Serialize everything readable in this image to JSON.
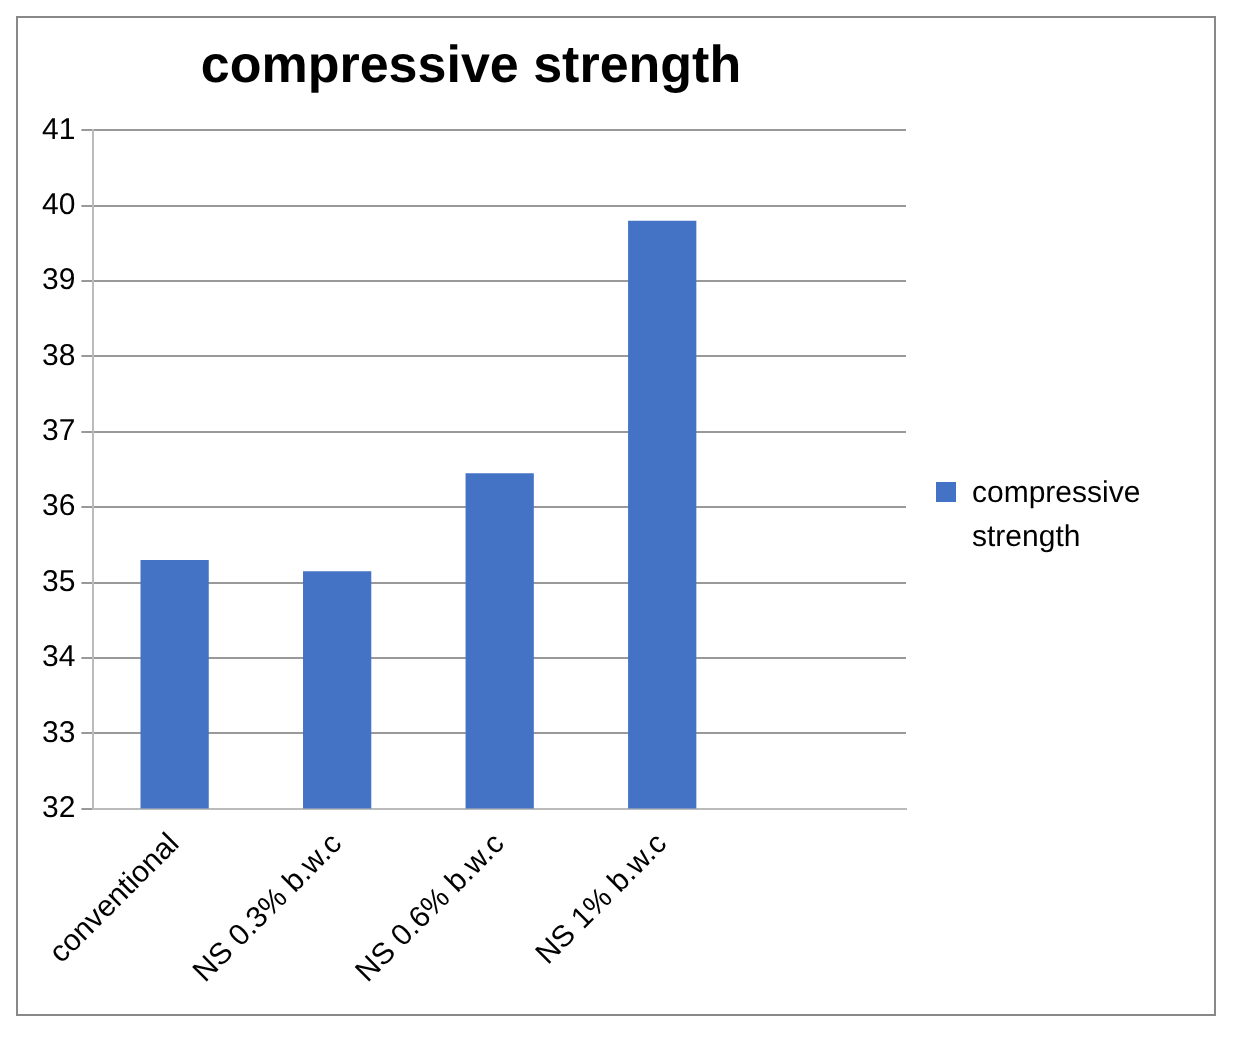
{
  "chart_data": {
    "type": "bar",
    "title": "compressive strength",
    "categories": [
      "conventional",
      "NS 0.3% b.w.c",
      "NS 0.6% b.w.c",
      "NS 1% b.w.c",
      null
    ],
    "series": [
      {
        "name": "compressive strength",
        "color": "#4472c4",
        "values": [
          35.3,
          35.15,
          36.45,
          39.8,
          null
        ]
      }
    ],
    "ylim": [
      32,
      41
    ],
    "yticks": [
      32,
      33,
      34,
      35,
      36,
      37,
      38,
      39,
      40,
      41
    ],
    "grid": "y",
    "legend": "right"
  }
}
